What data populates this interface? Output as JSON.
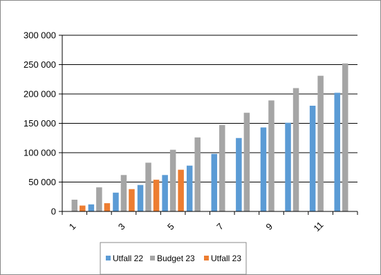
{
  "chart_data": {
    "type": "bar",
    "categories": [
      "1",
      "2",
      "3",
      "4",
      "5",
      "6",
      "7",
      "8",
      "9",
      "10",
      "11",
      "12"
    ],
    "x_tick_labels": [
      "1",
      "3",
      "5",
      "7",
      "9",
      "11"
    ],
    "y_ticks": [
      "0",
      "50 000",
      "100 000",
      "150 000",
      "200 000",
      "250 000",
      "300 000"
    ],
    "ylim": [
      0,
      300000
    ],
    "series": [
      {
        "name": "Utfall 22",
        "color": "#5B9BD5",
        "values": [
          0,
          12000,
          32000,
          45000,
          62000,
          78000,
          98000,
          125000,
          143000,
          151000,
          180000,
          202000
        ]
      },
      {
        "name": "Budget 23",
        "color": "#A5A5A5",
        "values": [
          20000,
          41000,
          62000,
          83000,
          105000,
          126000,
          147000,
          168000,
          189000,
          210000,
          231000,
          252000
        ]
      },
      {
        "name": "Utfall 23",
        "color": "#ED7D31",
        "values": [
          10000,
          14000,
          38000,
          54000,
          71000,
          null,
          null,
          null,
          null,
          null,
          null,
          null
        ]
      }
    ],
    "legend_position": "bottom",
    "grid": true
  }
}
